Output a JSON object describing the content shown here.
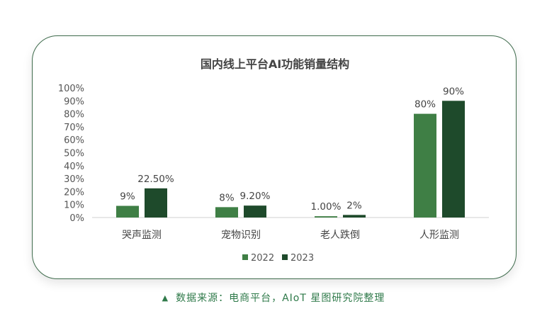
{
  "chart_data": {
    "type": "bar",
    "title": "国内线上平台AI功能销量结构",
    "categories": [
      "哭声监测",
      "宠物识别",
      "老人跌倒",
      "人形监测"
    ],
    "series": [
      {
        "name": "2022",
        "color": "#3f7f45",
        "values": [
          9,
          8,
          1,
          80
        ],
        "labels": [
          "9%",
          "8%",
          "1.00%",
          "80%"
        ]
      },
      {
        "name": "2023",
        "color": "#1e4a2b",
        "values": [
          22.5,
          9.2,
          2,
          90
        ],
        "labels": [
          "22.50%",
          "9.20%",
          "2%",
          "90%"
        ]
      }
    ],
    "yticks": [
      "0%",
      "10%",
      "20%",
      "30%",
      "40%",
      "50%",
      "60%",
      "70%",
      "80%",
      "90%",
      "100%"
    ],
    "ylim": [
      0,
      100
    ],
    "legend_position": "bottom",
    "grid": false
  },
  "source": {
    "icon": "triangle-up-icon",
    "text": "数据来源：电商平台，AIoT 星图研究院整理"
  }
}
